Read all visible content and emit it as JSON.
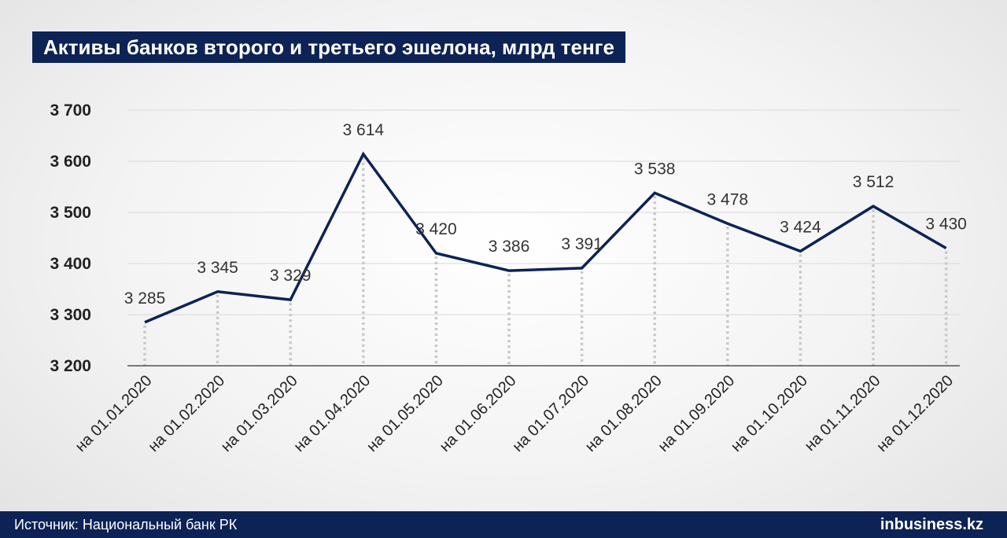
{
  "title": "Активы банков второго и третьего эшелона, млрд тенге",
  "source": "Источник: Национальный банк РК",
  "logo": "inbusiness.kz",
  "colors": {
    "line": "#0d2356",
    "banner": "#0d2356",
    "grid": "#d9d9d9",
    "dots": "#c8c8c8"
  },
  "chart_data": {
    "type": "line",
    "title": "Активы банков второго и третьего эшелона, млрд тенге",
    "xlabel": "",
    "ylabel": "",
    "ylim": [
      3200,
      3700
    ],
    "yticks": [
      3200,
      3300,
      3400,
      3500,
      3600,
      3700
    ],
    "ytick_labels": [
      "3 200",
      "3 300",
      "3 400",
      "3 500",
      "3 600",
      "3 700"
    ],
    "grid": true,
    "categories": [
      "на 01.01.2020",
      "на 01.02.2020",
      "на 01.03.2020",
      "на 01.04.2020",
      "на 01.05.2020",
      "на 01.06.2020",
      "на 01.07.2020",
      "на 01.08.2020",
      "на 01.09.2020",
      "на 01.10.2020",
      "на 01.11.2020",
      "на 01.12.2020"
    ],
    "values": [
      3285,
      3345,
      3329,
      3614,
      3420,
      3386,
      3391,
      3538,
      3478,
      3424,
      3512,
      3430
    ],
    "value_labels": [
      "3 285",
      "3 345",
      "3 329",
      "3 614",
      "3 420",
      "3 386",
      "3 391",
      "3 538",
      "3 478",
      "3 424",
      "3 512",
      "3 430"
    ]
  }
}
